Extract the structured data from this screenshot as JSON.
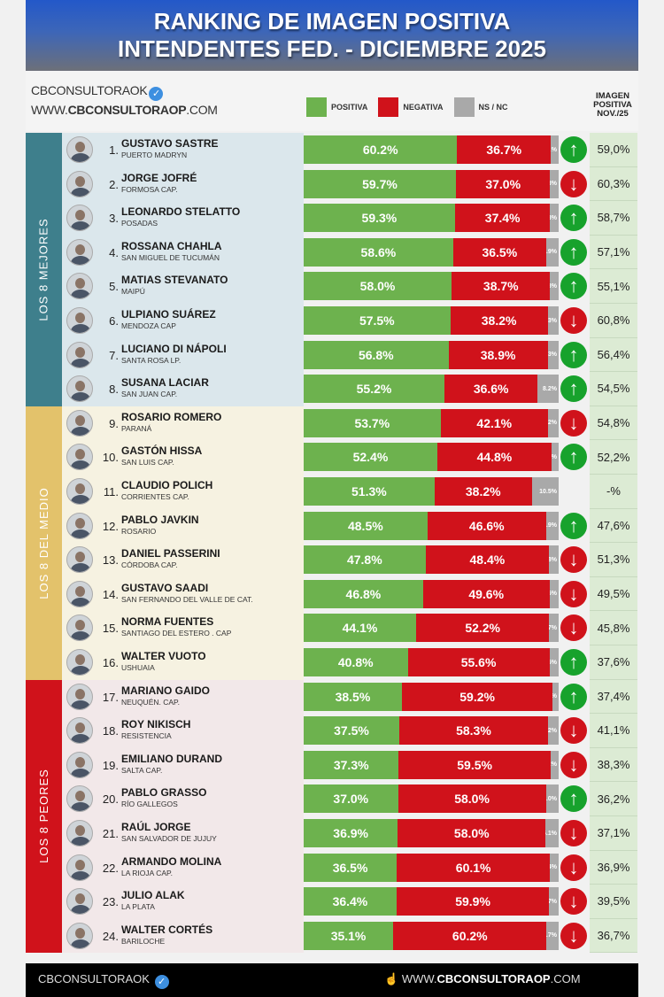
{
  "header": {
    "line1": "RANKING DE IMAGEN POSITIVA",
    "line2": "INTENDENTES FED. - DICIEMBRE 2025"
  },
  "brand": {
    "handle": "CBCONSULTORAOK",
    "web_prefix": "WWW.",
    "web_bold": "CBCONSULTORAOP",
    "web_suffix": ".COM"
  },
  "legend": {
    "positive": "POSITIVA",
    "negative": "NEGATIVA",
    "nsnc": "NS / NC"
  },
  "nov_header": {
    "l1": "IMAGEN",
    "l2": "POSITIVA",
    "l3": "NOV./25"
  },
  "colors": {
    "positive": "#6db24e",
    "negative": "#d0121b",
    "nsnc": "#a9a9a9",
    "up": "#17a22c",
    "down": "#d0121b",
    "group_best": "#3e7f8c",
    "group_mid": "#e3c26b",
    "group_worst": "#d0121b"
  },
  "groups": [
    {
      "label": "LOS 8 MEJORES",
      "side": "#3e7f8c",
      "bg": "#dbe7ec"
    },
    {
      "label": "LOS 8 DEL MEDIO",
      "side": "#e3c26b",
      "bg": "#f6f2e1"
    },
    {
      "label": "LOS 8 PEORES",
      "side": "#d0121b",
      "bg": "#f2e8e9"
    }
  ],
  "chart_data": {
    "type": "bar",
    "orientation": "horizontal",
    "stacked": true,
    "title": "RANKING DE IMAGEN POSITIVA INTENDENTES FED. - DICIEMBRE 2025",
    "xlim": [
      0,
      100
    ],
    "series_names": [
      "POSITIVA",
      "NEGATIVA",
      "NS / NC"
    ],
    "items": [
      {
        "rank": "1.",
        "name": "GUSTAVO SASTRE",
        "city": "PUERTO MADRYN",
        "positive": 60.2,
        "negative": 36.7,
        "nsnc": 3.1,
        "trend": "up",
        "nov": "59,0%"
      },
      {
        "rank": "2.",
        "name": "JORGE JOFRÉ",
        "city": "FORMOSA CAP.",
        "positive": 59.7,
        "negative": 37.0,
        "nsnc": 3.3,
        "trend": "down",
        "nov": "60,3%"
      },
      {
        "rank": "3.",
        "name": "LEONARDO STELATTO",
        "city": "POSADAS",
        "positive": 59.3,
        "negative": 37.4,
        "nsnc": 3.3,
        "trend": "up",
        "nov": "58,7%"
      },
      {
        "rank": "4.",
        "name": "ROSSANA CHAHLA",
        "city": "SAN MIGUEL DE TUCUMÁN",
        "positive": 58.6,
        "negative": 36.5,
        "nsnc": 4.9,
        "trend": "up",
        "nov": "57,1%"
      },
      {
        "rank": "5.",
        "name": "MATIAS STEVANATO",
        "city": "MAIPÚ",
        "positive": 58.0,
        "negative": 38.7,
        "nsnc": 3.3,
        "trend": "up",
        "nov": "55,1%"
      },
      {
        "rank": "6.",
        "name": "ULPIANO SUÁREZ",
        "city": "MENDOZA CAP",
        "positive": 57.5,
        "negative": 38.2,
        "nsnc": 4.3,
        "trend": "down",
        "nov": "60,8%"
      },
      {
        "rank": "7.",
        "name": "LUCIANO DI NÁPOLI",
        "city": "SANTA ROSA LP.",
        "positive": 56.8,
        "negative": 38.9,
        "nsnc": 4.3,
        "trend": "up",
        "nov": "56,4%"
      },
      {
        "rank": "8.",
        "name": "SUSANA LACIAR",
        "city": "SAN JUAN CAP.",
        "positive": 55.2,
        "negative": 36.6,
        "nsnc": 8.2,
        "trend": "up",
        "nov": "54,5%"
      },
      {
        "rank": "9.",
        "name": "ROSARIO ROMERO",
        "city": "PARANÁ",
        "positive": 53.7,
        "negative": 42.1,
        "nsnc": 4.2,
        "trend": "down",
        "nov": "54,8%"
      },
      {
        "rank": "10.",
        "name": "GASTÓN HISSA",
        "city": "SAN LUIS CAP.",
        "positive": 52.4,
        "negative": 44.8,
        "nsnc": 2.8,
        "trend": "up",
        "nov": "52,2%"
      },
      {
        "rank": "11.",
        "name": "CLAUDIO POLICH",
        "city": "CORRIENTES CAP.",
        "positive": 51.3,
        "negative": 38.2,
        "nsnc": 10.5,
        "trend": null,
        "nov": "-%"
      },
      {
        "rank": "12.",
        "name": "PABLO JAVKIN",
        "city": "ROSARIO",
        "positive": 48.5,
        "negative": 46.6,
        "nsnc": 4.9,
        "trend": "up",
        "nov": "47,6%"
      },
      {
        "rank": "13.",
        "name": "DANIEL PASSERINI",
        "city": "CÓRDOBA CAP.",
        "positive": 47.8,
        "negative": 48.4,
        "nsnc": 3.8,
        "trend": "down",
        "nov": "51,3%"
      },
      {
        "rank": "14.",
        "name": "GUSTAVO SAADI",
        "city": "SAN FERNANDO DEL VALLE DE CAT.",
        "positive": 46.8,
        "negative": 49.6,
        "nsnc": 3.6,
        "trend": "down",
        "nov": "49,5%"
      },
      {
        "rank": "15.",
        "name": "NORMA FUENTES",
        "city": "SANTIAGO DEL ESTERO . CAP",
        "positive": 44.1,
        "negative": 52.2,
        "nsnc": 3.7,
        "trend": "down",
        "nov": "45,8%"
      },
      {
        "rank": "16.",
        "name": "WALTER VUOTO",
        "city": "USHUAIA",
        "positive": 40.8,
        "negative": 55.6,
        "nsnc": 3.6,
        "trend": "up",
        "nov": "37,6%"
      },
      {
        "rank": "17.",
        "name": "MARIANO GAIDO",
        "city": "NEUQUÉN. CAP.",
        "positive": 38.5,
        "negative": 59.2,
        "nsnc": 2.3,
        "trend": "up",
        "nov": "37,4%"
      },
      {
        "rank": "18.",
        "name": "ROY NIKISCH",
        "city": "RESISTENCIA",
        "positive": 37.5,
        "negative": 58.3,
        "nsnc": 4.2,
        "trend": "down",
        "nov": "41,1%"
      },
      {
        "rank": "19.",
        "name": "EMILIANO DURAND",
        "city": "SALTA CAP.",
        "positive": 37.3,
        "negative": 59.5,
        "nsnc": 3.2,
        "trend": "down",
        "nov": "38,3%"
      },
      {
        "rank": "20.",
        "name": "PABLO GRASSO",
        "city": "RÍO GALLEGOS",
        "positive": 37.0,
        "negative": 58.0,
        "nsnc": 5.0,
        "trend": "up",
        "nov": "36,2%"
      },
      {
        "rank": "21.",
        "name": "RAÚL JORGE",
        "city": "SAN SALVADOR DE JUJUY",
        "positive": 36.9,
        "negative": 58.0,
        "nsnc": 5.1,
        "trend": "down",
        "nov": "37,1%"
      },
      {
        "rank": "22.",
        "name": "ARMANDO MOLINA",
        "city": "LA RIOJA CAP.",
        "positive": 36.5,
        "negative": 60.1,
        "nsnc": 3.4,
        "trend": "down",
        "nov": "36,9%"
      },
      {
        "rank": "23.",
        "name": "JULIO ALAK",
        "city": "LA PLATA",
        "positive": 36.4,
        "negative": 59.9,
        "nsnc": 3.7,
        "trend": "down",
        "nov": "39,5%"
      },
      {
        "rank": "24.",
        "name": "WALTER CORTÉS",
        "city": "BARILOCHE",
        "positive": 35.1,
        "negative": 60.2,
        "nsnc": 4.7,
        "trend": "down",
        "nov": "36,7%"
      }
    ]
  },
  "footer": {
    "handle": "CBCONSULTORAOK",
    "web_prefix": "WWW.",
    "web_bold": "CBCONSULTORAOP",
    "web_suffix": ".COM"
  }
}
